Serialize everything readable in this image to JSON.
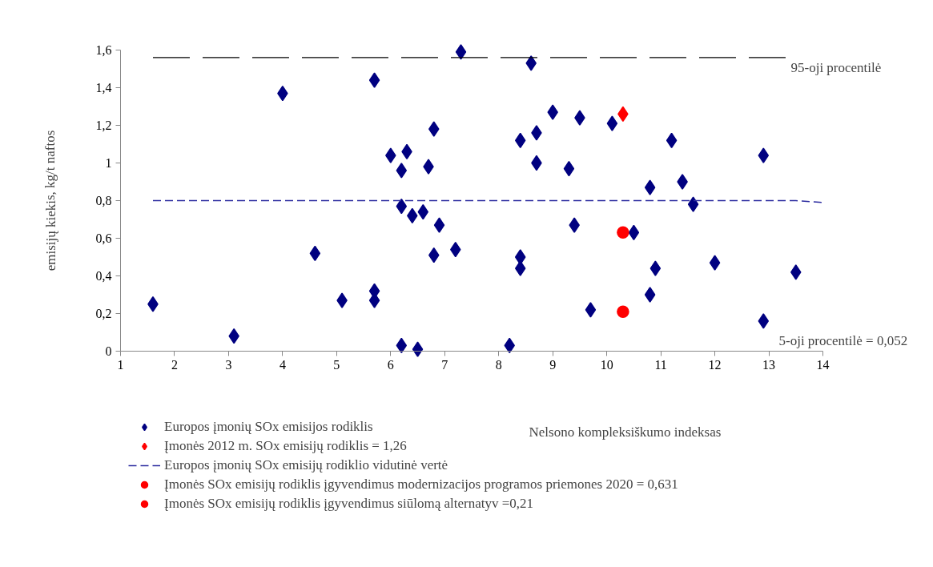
{
  "chart_data": {
    "type": "scatter",
    "ylabel": "emisijų kiekis, kg/t naftos",
    "xlabel": "Nelsono kompleksiškumo indeksas",
    "xlim": [
      1,
      14
    ],
    "xticks": [
      1,
      2,
      3,
      4,
      5,
      6,
      7,
      8,
      9,
      10,
      11,
      12,
      13,
      14
    ],
    "ylim": [
      0,
      1.6
    ],
    "yticks": [
      0,
      {
        "value": 0.2,
        "label": "0,2"
      },
      {
        "value": 0.4,
        "label": "0,4"
      },
      {
        "value": 0.6,
        "label": "0,6"
      },
      {
        "value": 0.8,
        "label": "0,8"
      },
      1,
      {
        "value": 1.2,
        "label": "1,2"
      },
      {
        "value": 1.4,
        "label": "1,4"
      },
      {
        "value": 1.6,
        "label": "1,6"
      }
    ],
    "grid": false,
    "legend": "bottom",
    "series": [
      {
        "name": "Europos įmonių SOx emisijos rodiklis",
        "marker": "diamond",
        "color": "#000080",
        "x": [
          1.6,
          3.1,
          4.0,
          4.6,
          5.1,
          5.7,
          5.7,
          5.7,
          6.0,
          6.2,
          6.3,
          6.2,
          6.4,
          6.6,
          6.7,
          6.8,
          6.9,
          6.8,
          7.2,
          6.2,
          6.5,
          7.3,
          8.2,
          8.4,
          8.4,
          8.4,
          8.6,
          8.7,
          8.7,
          9.0,
          9.3,
          9.4,
          9.5,
          9.7,
          10.1,
          10.5,
          10.8,
          10.8,
          10.9,
          11.2,
          11.4,
          11.6,
          12.0,
          12.9,
          12.9,
          13.5
        ],
        "values": [
          0.25,
          0.08,
          1.37,
          0.52,
          0.27,
          1.44,
          0.32,
          0.27,
          1.04,
          0.96,
          1.06,
          0.77,
          0.72,
          0.74,
          0.98,
          1.18,
          0.67,
          0.51,
          0.54,
          0.03,
          0.01,
          1.59,
          0.03,
          1.12,
          0.5,
          0.44,
          1.53,
          1.16,
          1.0,
          1.27,
          0.97,
          0.67,
          1.24,
          0.22,
          1.21,
          0.63,
          0.87,
          0.3,
          0.44,
          1.12,
          0.9,
          0.78,
          0.47,
          1.04,
          0.16,
          0.42
        ]
      },
      {
        "name": "Įmonės 2012 m. SOx emisijų rodiklis = 1,26",
        "marker": "diamond",
        "color": "#ff0000",
        "x": [
          10.3
        ],
        "values": [
          1.26
        ]
      },
      {
        "name": "Europos įmonių SOx emisijų rodiklio vidutinė vertė",
        "type": "line",
        "line_style": "dashed",
        "color": "#2b2b9f",
        "x": [
          1.6,
          13.5,
          14.0
        ],
        "values": [
          0.8,
          0.8,
          0.79
        ]
      },
      {
        "name": "Įmonės SOx emisijų rodiklis įgyvendimus modernizacijos programos priemones 2020 = 0,631",
        "marker": "circle",
        "color": "#ff0000",
        "x": [
          10.3
        ],
        "values": [
          0.631
        ]
      },
      {
        "name": "Įmonės SOx emisijų rodiklis įgyvendimus siūlomą alternatyv =0,21",
        "marker": "circle",
        "color": "#ff0000",
        "x": [
          10.3
        ],
        "values": [
          0.21
        ]
      }
    ],
    "ref_lines": [
      {
        "axis": "y",
        "value": 1.56,
        "label": "95-oji procentilė",
        "color": "#000000",
        "line_style": "dashed"
      }
    ],
    "annotations": [
      "5-oji procentilė = 0,052"
    ]
  }
}
